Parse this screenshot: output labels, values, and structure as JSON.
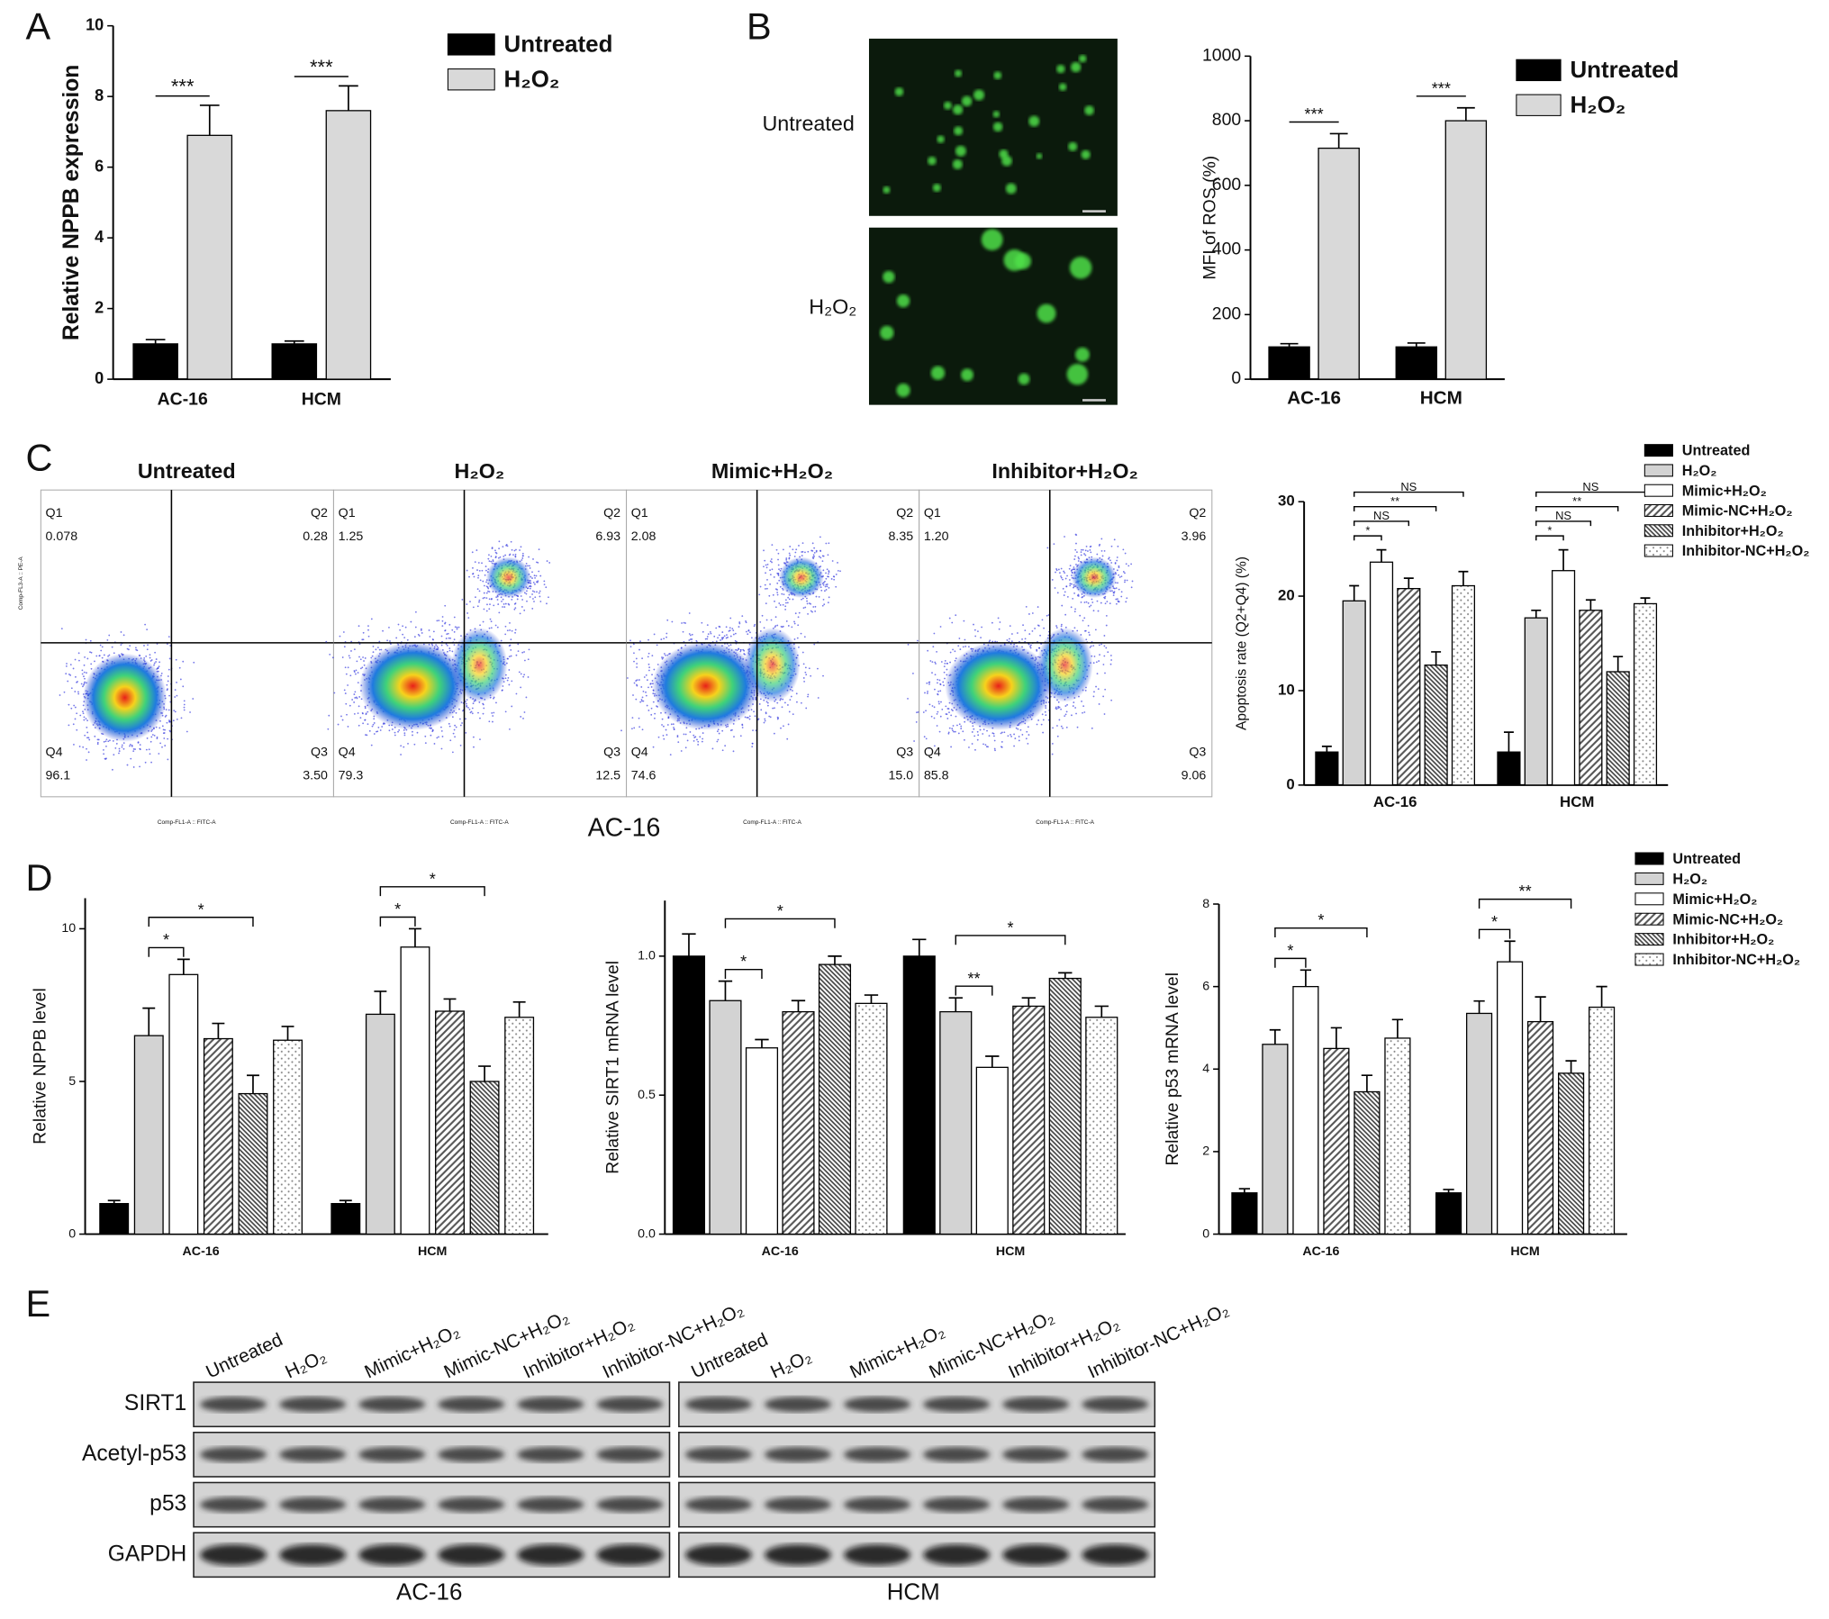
{
  "panel_labels": [
    "A",
    "B",
    "C",
    "D",
    "E"
  ],
  "chart_data": [
    {
      "type": "bar",
      "y_label": "Relative NPPB expression",
      "categories": [
        "AC-16",
        "HCM"
      ],
      "series": [
        {
          "name": "Untreated",
          "color": "#000000",
          "pattern": "solid",
          "values": [
            1,
            1
          ],
          "errors": [
            0.12,
            0.08
          ]
        },
        {
          "name": "H₂O₂",
          "color": "#d9d9d9",
          "pattern": "solid",
          "values": [
            6.9,
            7.6
          ],
          "errors": [
            0.85,
            0.7
          ]
        }
      ],
      "ylim": [
        0,
        10
      ],
      "yticks": [
        0,
        2,
        4,
        6,
        8,
        10
      ],
      "legend": "right",
      "comparisons": [
        {
          "label": "***",
          "category": 0,
          "series": [
            0,
            1
          ]
        },
        {
          "label": "***",
          "category": 1,
          "series": [
            0,
            1
          ]
        }
      ]
    },
    {
      "type": "bar",
      "y_label": "MFI of ROS (%)",
      "categories": [
        "AC-16",
        "HCM"
      ],
      "series": [
        {
          "name": "Untreated",
          "color": "#000000",
          "pattern": "solid",
          "values": [
            100,
            100
          ],
          "errors": [
            10,
            12
          ]
        },
        {
          "name": "H₂O₂",
          "color": "#d9d9d9",
          "pattern": "solid",
          "values": [
            715,
            800
          ],
          "errors": [
            45,
            40
          ]
        }
      ],
      "ylim": [
        0,
        1000
      ],
      "yticks": [
        0,
        200,
        400,
        600,
        800,
        1000
      ],
      "legend": "right",
      "comparisons": [
        {
          "label": "***",
          "category": 0,
          "series": [
            0,
            1
          ]
        },
        {
          "label": "***",
          "category": 1,
          "series": [
            0,
            1
          ]
        }
      ]
    },
    {
      "type": "bar",
      "y_label": "Apoptosis rate (Q2+Q4) (%)",
      "categories": [
        "AC-16",
        "HCM"
      ],
      "series": [
        {
          "name": "Untreated",
          "color": "#000000",
          "pattern": "solid",
          "values": [
            3.5,
            3.5
          ],
          "errors": [
            0.6,
            2.1
          ]
        },
        {
          "name": "H₂O₂",
          "color": "#d3d3d3",
          "pattern": "solid",
          "values": [
            19.5,
            17.7
          ],
          "errors": [
            1.6,
            0.8
          ]
        },
        {
          "name": "Mimic+H₂O₂",
          "color": "#ffffff",
          "pattern": "solid",
          "values": [
            23.6,
            22.7
          ],
          "errors": [
            1.3,
            2.2
          ]
        },
        {
          "name": "Mimic-NC+H₂O₂",
          "color": "#555555",
          "pattern": "hatch-up",
          "values": [
            20.8,
            18.5
          ],
          "errors": [
            1.1,
            1.1
          ]
        },
        {
          "name": "Inhibitor+H₂O₂",
          "color": "#444444",
          "pattern": "hatch-down",
          "values": [
            12.7,
            12
          ],
          "errors": [
            1.4,
            1.6
          ]
        },
        {
          "name": "Inhibitor-NC+H₂O₂",
          "color": "#888888",
          "pattern": "dots",
          "values": [
            21.1,
            19.2
          ],
          "errors": [
            1.5,
            0.6
          ]
        }
      ],
      "ylim": [
        0,
        30
      ],
      "yticks": [
        0,
        10,
        20,
        30
      ],
      "legend": "upper right",
      "comparisons": [
        {
          "label": "*",
          "category": 0,
          "series": [
            1,
            2
          ]
        },
        {
          "label": "NS",
          "category": 0,
          "series": [
            1,
            3
          ]
        },
        {
          "label": "**",
          "category": 0,
          "series": [
            1,
            4
          ]
        },
        {
          "label": "NS",
          "category": 0,
          "series": [
            1,
            5
          ]
        },
        {
          "label": "*",
          "category": 1,
          "series": [
            1,
            2
          ]
        },
        {
          "label": "NS",
          "category": 1,
          "series": [
            1,
            3
          ]
        },
        {
          "label": "**",
          "category": 1,
          "series": [
            1,
            4
          ]
        },
        {
          "label": "NS",
          "category": 1,
          "series": [
            1,
            5
          ]
        }
      ]
    },
    {
      "type": "bar",
      "y_label": "Relative NPPB level",
      "categories": [
        "AC-16",
        "HCM"
      ],
      "series": [
        {
          "color": "#000000",
          "pattern": "solid",
          "values": [
            1,
            1
          ],
          "errors": [
            0.1,
            0.1
          ]
        },
        {
          "color": "#d3d3d3",
          "pattern": "solid",
          "values": [
            6.5,
            7.2
          ],
          "errors": [
            0.9,
            0.75
          ]
        },
        {
          "color": "#ffffff",
          "pattern": "solid",
          "values": [
            8.5,
            9.4
          ],
          "errors": [
            0.5,
            0.6
          ]
        },
        {
          "color": "#555555",
          "pattern": "hatch-up",
          "values": [
            6.4,
            7.3
          ],
          "errors": [
            0.5,
            0.4
          ]
        },
        {
          "color": "#444444",
          "pattern": "hatch-down",
          "values": [
            4.6,
            5.0
          ],
          "errors": [
            0.6,
            0.5
          ]
        },
        {
          "color": "#888888",
          "pattern": "dots",
          "values": [
            6.35,
            7.1
          ],
          "errors": [
            0.45,
            0.5
          ]
        }
      ],
      "ylim": [
        0,
        11
      ],
      "yticks": [
        0,
        5,
        10
      ],
      "comparisons": [
        {
          "label": "*",
          "category": 0,
          "series": [
            1,
            2
          ]
        },
        {
          "label": "*",
          "category": 0,
          "series": [
            1,
            4
          ]
        },
        {
          "label": "*",
          "category": 1,
          "series": [
            1,
            2
          ]
        },
        {
          "label": "*",
          "category": 1,
          "series": [
            1,
            4
          ]
        }
      ]
    },
    {
      "type": "bar",
      "y_label": "Relative SIRT1 mRNA level",
      "categories": [
        "AC-16",
        "HCM"
      ],
      "series": [
        {
          "color": "#000000",
          "pattern": "solid",
          "values": [
            1,
            1
          ],
          "errors": [
            0.08,
            0.06
          ]
        },
        {
          "color": "#d3d3d3",
          "pattern": "solid",
          "values": [
            0.84,
            0.8
          ],
          "errors": [
            0.07,
            0.05
          ]
        },
        {
          "color": "#ffffff",
          "pattern": "solid",
          "values": [
            0.67,
            0.6
          ],
          "errors": [
            0.03,
            0.04
          ]
        },
        {
          "color": "#555555",
          "pattern": "hatch-up",
          "values": [
            0.8,
            0.82
          ],
          "errors": [
            0.04,
            0.03
          ]
        },
        {
          "color": "#444444",
          "pattern": "hatch-down",
          "values": [
            0.97,
            0.92
          ],
          "errors": [
            0.03,
            0.02
          ]
        },
        {
          "color": "#888888",
          "pattern": "dots",
          "values": [
            0.83,
            0.78
          ],
          "errors": [
            0.03,
            0.04
          ]
        }
      ],
      "ylim": [
        0,
        1.2
      ],
      "yticks": [
        {
          "value": 0,
          "label": "0.0"
        },
        0.5,
        {
          "value": 1,
          "label": "1.0"
        }
      ],
      "comparisons": [
        {
          "label": "*",
          "category": 0,
          "series": [
            1,
            2
          ]
        },
        {
          "label": "*",
          "category": 0,
          "series": [
            1,
            4
          ]
        },
        {
          "label": "**",
          "category": 1,
          "series": [
            1,
            2
          ]
        },
        {
          "label": "*",
          "category": 1,
          "series": [
            1,
            4
          ]
        }
      ]
    },
    {
      "type": "bar",
      "y_label": "Relative p53 mRNA level",
      "categories": [
        "AC-16",
        "HCM"
      ],
      "series": [
        {
          "name": "Untreated",
          "color": "#000000",
          "pattern": "solid",
          "values": [
            1,
            1
          ],
          "errors": [
            0.1,
            0.08
          ]
        },
        {
          "name": "H₂O₂",
          "color": "#d3d3d3",
          "pattern": "solid",
          "values": [
            4.6,
            5.35
          ],
          "errors": [
            0.35,
            0.3
          ]
        },
        {
          "name": "Mimic+H₂O₂",
          "color": "#ffffff",
          "pattern": "solid",
          "values": [
            6.0,
            6.6
          ],
          "errors": [
            0.4,
            0.5
          ]
        },
        {
          "name": "Mimic-NC+H₂O₂",
          "color": "#555555",
          "pattern": "hatch-up",
          "values": [
            4.5,
            5.15
          ],
          "errors": [
            0.5,
            0.6
          ]
        },
        {
          "name": "Inhibitor+H₂O₂",
          "color": "#444444",
          "pattern": "hatch-down",
          "values": [
            3.45,
            3.9
          ],
          "errors": [
            0.4,
            0.3
          ]
        },
        {
          "name": "Inhibitor-NC+H₂O₂",
          "color": "#888888",
          "pattern": "dots",
          "values": [
            4.75,
            5.5
          ],
          "errors": [
            0.45,
            0.5
          ]
        }
      ],
      "ylim": [
        0,
        8
      ],
      "yticks": [
        0,
        2,
        4,
        6,
        8
      ],
      "legend": "upper right",
      "comparisons": [
        {
          "label": "*",
          "category": 0,
          "series": [
            1,
            2
          ]
        },
        {
          "label": "*",
          "category": 0,
          "series": [
            1,
            4
          ]
        },
        {
          "label": "*",
          "category": 1,
          "series": [
            1,
            2
          ]
        },
        {
          "label": "**",
          "category": 1,
          "series": [
            1,
            4
          ]
        }
      ]
    }
  ],
  "fluorescence": {
    "labels": [
      "Untreated",
      "H₂O₂"
    ]
  },
  "flow": {
    "cell_line": "AC-16",
    "x_label": "Comp-FL1-A :: FITC-A",
    "y_label": "Comp-FL3-A :: PE-A",
    "panels": [
      {
        "title": "Untreated",
        "quadrants": [
          {
            "name": "Q1",
            "value": "0.078"
          },
          {
            "name": "Q2",
            "value": "0.28"
          },
          {
            "name": "Q3",
            "value": "3.50"
          },
          {
            "name": "Q4",
            "value": "96.1"
          }
        ]
      },
      {
        "title": "H₂O₂",
        "quadrants": [
          {
            "name": "Q1",
            "value": "1.25"
          },
          {
            "name": "Q2",
            "value": "6.93"
          },
          {
            "name": "Q3",
            "value": "12.5"
          },
          {
            "name": "Q4",
            "value": "79.3"
          }
        ]
      },
      {
        "title": "Mimic+H₂O₂",
        "quadrants": [
          {
            "name": "Q1",
            "value": "2.08"
          },
          {
            "name": "Q2",
            "value": "8.35"
          },
          {
            "name": "Q3",
            "value": "15.0"
          },
          {
            "name": "Q4",
            "value": "74.6"
          }
        ]
      },
      {
        "title": "Inhibitor+H₂O₂",
        "quadrants": [
          {
            "name": "Q1",
            "value": "1.20"
          },
          {
            "name": "Q2",
            "value": "3.96"
          },
          {
            "name": "Q3",
            "value": "9.06"
          },
          {
            "name": "Q4",
            "value": "85.8"
          }
        ]
      }
    ]
  },
  "blot": {
    "lanes": [
      "Untreated",
      "H₂O₂",
      "Mimic+H₂O₂",
      "Mimic-NC+H₂O₂",
      "Inhibitor+H₂O₂",
      "Inhibitor-NC+H₂O₂"
    ],
    "rows": [
      "SIRT1",
      "Acetyl-p53",
      "p53",
      "GAPDH"
    ],
    "groups": [
      "AC-16",
      "HCM"
    ]
  }
}
